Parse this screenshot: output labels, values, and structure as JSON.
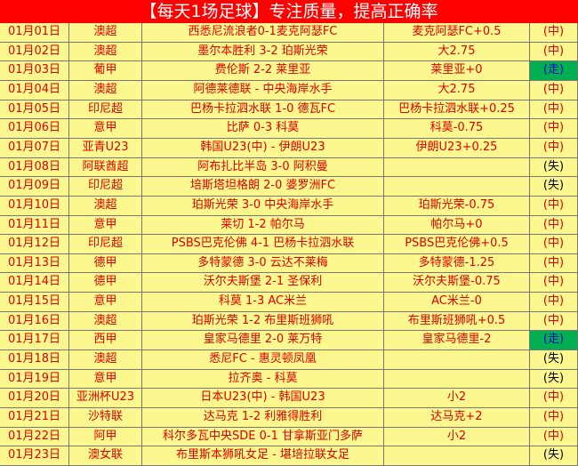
{
  "header": {
    "title": "【每天1场足球】专注质量，提高正确率"
  },
  "table": {
    "rows": [
      {
        "cells": [
          "01月01日",
          "澳超",
          "西悉尼流浪者0-1麦克阿瑟FC",
          "麦克阿瑟FC+0.5",
          "(中)"
        ],
        "result_color": "#e00000"
      },
      {
        "cells": [
          "01月02日",
          "澳超",
          "墨尔本胜利 3-2 珀斯光荣",
          "大2.75",
          "(中)"
        ],
        "result_color": "#e00000"
      },
      {
        "cells": [
          "01月03日",
          "葡甲",
          "费伦斯 2-2 莱里亚",
          "莱里亚+0",
          "(走)"
        ],
        "result_color": "#0000cc",
        "result_background": "#00b050"
      },
      {
        "cells": [
          "01月04日",
          "澳超",
          "阿德莱德联 - 中央海岸水手",
          "大2.75",
          "(中)"
        ],
        "result_color": "#e00000"
      },
      {
        "cells": [
          "01月05日",
          "印尼超",
          "巴杨卡拉泗水联 1-0 德瓦FC",
          "巴杨卡拉泗水联+0.25",
          "(中)"
        ],
        "result_color": "#e00000"
      },
      {
        "cells": [
          "01月06日",
          "意甲",
          "比萨 0-3 科莫",
          "科莫-0.75",
          "(中)"
        ],
        "result_color": "#e00000"
      },
      {
        "cells": [
          "01月07日",
          "亚青U23",
          "韩国U23(中) - 伊朗U23",
          "伊朗U23+0.25",
          "(中)"
        ],
        "result_color": "#e00000"
      },
      {
        "cells": [
          "01月08日",
          "阿联酋超",
          "阿布扎比半岛 3-0 阿积曼",
          null,
          "(失)"
        ],
        "result_color": "#000000"
      },
      {
        "cells": [
          "01月09日",
          "印尼超",
          "培斯塔坦格朗 2-0 婆罗洲FC",
          null,
          "(失)"
        ],
        "result_color": "#000000"
      },
      {
        "cells": [
          "01月10日",
          "澳超",
          "珀斯光荣 3-0 中央海岸水手",
          "珀斯光荣-0.75",
          "(中)"
        ],
        "result_color": "#e00000"
      },
      {
        "cells": [
          "01月11日",
          "意甲",
          "莱切 1-2 帕尔马",
          "帕尔马+0",
          "(中)"
        ],
        "result_color": "#e00000"
      },
      {
        "cells": [
          "01月12日",
          "印尼超",
          "PSBS巴克伦佛 4-1 巴杨卡拉泗水联",
          "PSBS巴克伦佛+0.5",
          "(中)"
        ],
        "result_color": "#e00000"
      },
      {
        "cells": [
          "01月13日",
          "德甲",
          "多特蒙德 3-0 云达不莱梅",
          "多特蒙德-1.25",
          "(中)"
        ],
        "result_color": "#e00000"
      },
      {
        "cells": [
          "01月14日",
          "德甲",
          "沃尔夫斯堡 2-1 圣保利",
          "沃尔夫斯堡-0.75",
          "(中)"
        ],
        "result_color": "#e00000"
      },
      {
        "cells": [
          "01月15日",
          "意甲",
          "科莫 1-3 AC米兰",
          "AC米兰-0",
          "(中)"
        ],
        "result_color": "#e00000"
      },
      {
        "cells": [
          "01月16日",
          "澳超",
          "珀斯光荣 1-2 布里斯班狮吼",
          "布里斯班狮吼+0.5",
          "(中)"
        ],
        "result_color": "#e00000"
      },
      {
        "cells": [
          "01月17日",
          "西甲",
          "皇家马德里 2-0 莱万特",
          "皇家马德里-2",
          "(走)"
        ],
        "result_color": "#0000cc",
        "result_background": "#00b050"
      },
      {
        "cells": [
          "01月18日",
          "澳超",
          "悉尼FC - 惠灵顿凤凰",
          null,
          "(失)"
        ],
        "result_color": "#000000"
      },
      {
        "cells": [
          "01月19日",
          "意甲",
          "拉齐奥 - 科莫",
          null,
          "(失)"
        ],
        "result_color": "#000000"
      },
      {
        "cells": [
          "01月20日",
          "亚洲杯U23",
          "日本U23(中) - 韩国U23",
          "小2",
          "(中)"
        ],
        "result_color": "#e00000"
      },
      {
        "cells": [
          "01月21日",
          "沙特联",
          "达马克 1-2 利雅得胜利",
          "达马克+2",
          "(中)"
        ],
        "result_color": "#e00000"
      },
      {
        "cells": [
          "01月22日",
          "阿甲",
          "科尔多瓦中央SDE 0-1 甘拿斯亚门多萨",
          "小2",
          "(中)"
        ],
        "result_color": "#e00000"
      },
      {
        "cells": [
          "01月23日",
          "澳女联",
          "布里斯本狮吼女足 - 堪培拉联女足",
          null,
          "(失)"
        ],
        "result_color": "#000000"
      }
    ]
  }
}
